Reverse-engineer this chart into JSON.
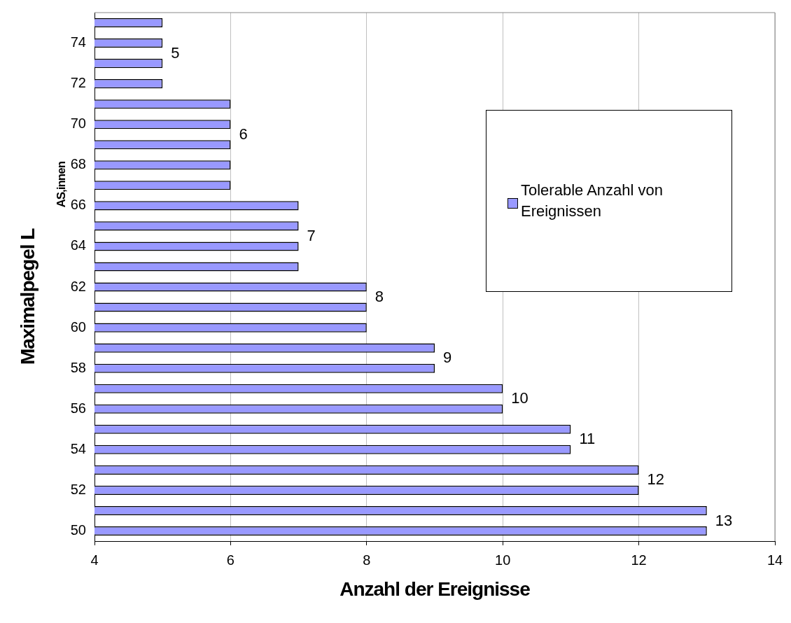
{
  "chart_data": {
    "type": "bar",
    "orientation": "horizontal",
    "xlabel": "Anzahl der Ereignisse",
    "ylabel": "Maximalpegel L$_{AS,innen}$",
    "categories": [
      null,
      "74",
      null,
      "72",
      null,
      "70",
      null,
      "68",
      null,
      "66",
      null,
      "64",
      null,
      "62",
      null,
      "60",
      null,
      "58",
      null,
      "56",
      null,
      "54",
      null,
      "52",
      null,
      "50"
    ],
    "series": [
      {
        "name": "Tolerable Anzahl von Ereignissen",
        "color": "#9999ff",
        "values": [
          5,
          5,
          5,
          5,
          6,
          6,
          6,
          6,
          6,
          7,
          7,
          7,
          7,
          8,
          8,
          8,
          9,
          9,
          10,
          10,
          11,
          11,
          12,
          12,
          13,
          13
        ],
        "value_labels": [
          null,
          null,
          "5",
          null,
          null,
          null,
          "6",
          null,
          null,
          null,
          null,
          "7",
          null,
          null,
          "8",
          null,
          null,
          "9",
          null,
          "10",
          null,
          "11",
          null,
          "12",
          null,
          "13"
        ]
      }
    ],
    "xlim": [
      4,
      14
    ],
    "xticks": [
      4,
      6,
      8,
      10,
      12,
      14
    ],
    "grid": "x",
    "legend": "right"
  }
}
